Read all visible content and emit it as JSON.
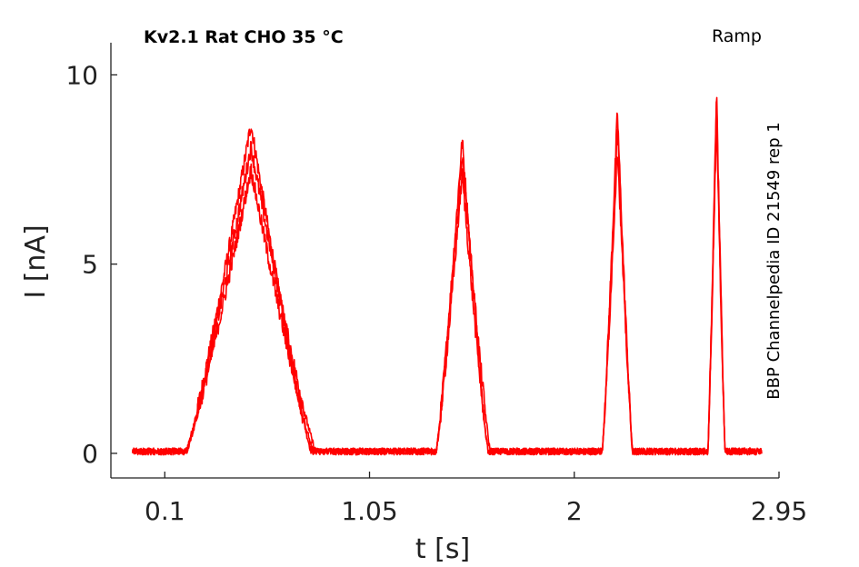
{
  "chart_data": {
    "type": "line",
    "title": "Kv2.1  Rat  CHO  35 °C",
    "protocol_label": "Ramp",
    "side_note": "BBP Channelpedia ID 21549 rep 1",
    "xlabel": "t [s]",
    "ylabel": "I [nA]",
    "xlim": [
      -0.15,
      2.95
    ],
    "ylim": [
      -0.65,
      10.85
    ],
    "xticks": [
      {
        "value": 0.1,
        "label": "0.1"
      },
      {
        "value": 1.05,
        "label": "1.05"
      },
      {
        "value": 2,
        "label": "2"
      },
      {
        "value": 2.95,
        "label": "2.95"
      }
    ],
    "yticks": [
      {
        "value": 0,
        "label": "0"
      },
      {
        "value": 5,
        "label": "5"
      },
      {
        "value": 10,
        "label": "10"
      }
    ],
    "grid": false,
    "line_color": "#ff0000",
    "baseline": 0.05,
    "x_start": -0.05,
    "x_end": 2.87,
    "series": [
      {
        "peaks": [
          {
            "start": 0.2,
            "peak": 0.5,
            "end": 0.78,
            "height": 8.7
          },
          {
            "start": 1.36,
            "peak": 1.48,
            "end": 1.6,
            "height": 8.3
          },
          {
            "start": 2.13,
            "peak": 2.2,
            "end": 2.27,
            "height": 9.05
          },
          {
            "start": 2.62,
            "peak": 2.66,
            "end": 2.7,
            "height": 9.6
          }
        ]
      },
      {
        "peaks": [
          {
            "start": 0.2,
            "peak": 0.5,
            "end": 0.8,
            "height": 8.1
          },
          {
            "start": 1.36,
            "peak": 1.48,
            "end": 1.61,
            "height": 7.9
          },
          {
            "start": 2.13,
            "peak": 2.2,
            "end": 2.27,
            "height": 8.6
          },
          {
            "start": 2.62,
            "peak": 2.66,
            "end": 2.7,
            "height": 9.3
          }
        ]
      },
      {
        "peaks": [
          {
            "start": 0.2,
            "peak": 0.5,
            "end": 0.79,
            "height": 7.5
          },
          {
            "start": 1.36,
            "peak": 1.48,
            "end": 1.6,
            "height": 7.4
          },
          {
            "start": 2.13,
            "peak": 2.2,
            "end": 2.27,
            "height": 8.1
          },
          {
            "start": 2.62,
            "peak": 2.66,
            "end": 2.7,
            "height": 8.9
          }
        ]
      }
    ]
  }
}
